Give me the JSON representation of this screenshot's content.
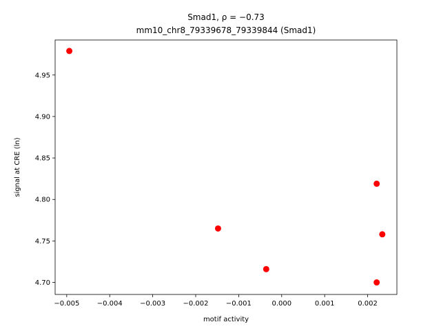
{
  "chart_data": {
    "type": "scatter",
    "title_line1": "Smad1, ρ = −0.73",
    "title_line2": "mm10_chr8_79339678_79339844 (Smad1)",
    "xlabel": "motif activity",
    "ylabel": "signal at CRE (ln)",
    "xlim": [
      -0.00527,
      0.00268
    ],
    "ylim": [
      4.6855,
      4.9922
    ],
    "x_ticks": [
      -0.005,
      -0.004,
      -0.003,
      -0.002,
      -0.001,
      0.0,
      0.001,
      0.002
    ],
    "x_tick_labels": [
      "−0.005",
      "−0.004",
      "−0.003",
      "−0.002",
      "−0.001",
      "0.000",
      "0.001",
      "0.002"
    ],
    "y_ticks": [
      4.7,
      4.75,
      4.8,
      4.85,
      4.9,
      4.95
    ],
    "y_tick_labels": [
      "4.70",
      "4.75",
      "4.80",
      "4.85",
      "4.90",
      "4.95"
    ],
    "grid": false,
    "point_color": "#ff0000",
    "points": [
      {
        "x": -0.00494,
        "y": 4.979
      },
      {
        "x": -0.00148,
        "y": 4.765
      },
      {
        "x": -0.00036,
        "y": 4.716
      },
      {
        "x": 0.00221,
        "y": 4.819
      },
      {
        "x": 0.00234,
        "y": 4.758
      },
      {
        "x": 0.00221,
        "y": 4.7
      }
    ]
  }
}
